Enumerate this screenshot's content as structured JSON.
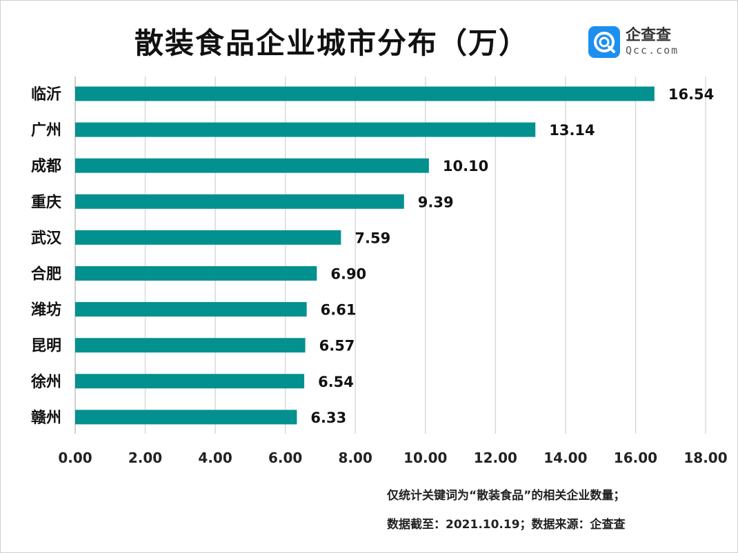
{
  "title": "散装食品企业城市分布（万）",
  "logo": {
    "name": "企查查",
    "domain": "Qcc.com",
    "color": "#1d8ff0"
  },
  "notes": {
    "line1": "仅统计关键词为“散装食品”的相关企业数量；",
    "line2": "数据截至：2021.10.19；数据来源：企查查"
  },
  "chart_data": {
    "type": "bar",
    "orientation": "horizontal",
    "title": "散装食品企业城市分布（万）",
    "categories": [
      "临沂",
      "广州",
      "成都",
      "重庆",
      "武汉",
      "合肥",
      "潍坊",
      "昆明",
      "徐州",
      "赣州"
    ],
    "values": [
      16.54,
      13.14,
      10.1,
      9.39,
      7.59,
      6.9,
      6.61,
      6.57,
      6.54,
      6.33
    ],
    "value_labels": [
      "16.54",
      "13.14",
      "10.10",
      "9.39",
      "7.59",
      "6.90",
      "6.61",
      "6.57",
      "6.54",
      "6.33"
    ],
    "xlim": [
      0,
      18
    ],
    "xticks": [
      "0.00",
      "2.00",
      "4.00",
      "6.00",
      "8.00",
      "10.00",
      "12.00",
      "14.00",
      "16.00",
      "18.00"
    ],
    "grid": true,
    "bar_color": "#02918f",
    "grid_color": "#d9d9d9"
  }
}
